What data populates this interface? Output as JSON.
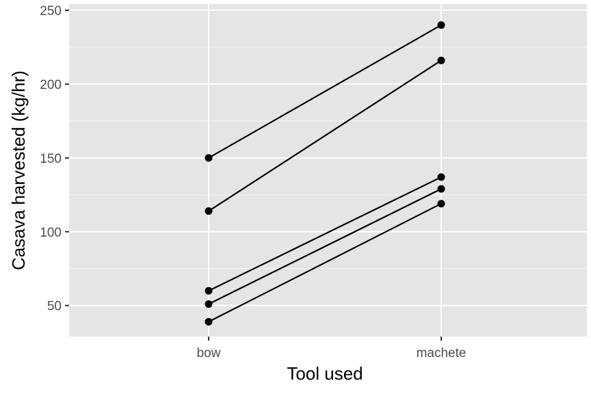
{
  "chart_data": {
    "type": "line",
    "title": "",
    "xlabel": "Tool used",
    "ylabel": "Casava harvested (kg/hr)",
    "categories": [
      "bow",
      "machete"
    ],
    "ylim": [
      29,
      250
    ],
    "yticks": [
      50,
      100,
      150,
      200,
      250
    ],
    "grid": true,
    "legend": "none",
    "series": [
      {
        "values": [
          150,
          240
        ]
      },
      {
        "values": [
          114,
          216
        ]
      },
      {
        "values": [
          60,
          137
        ]
      },
      {
        "values": [
          51,
          129
        ]
      },
      {
        "values": [
          39,
          119
        ]
      }
    ],
    "colors": {
      "panel": "#e5e5e5",
      "grid_major": "#ffffff",
      "line": "#000000",
      "tick_text": "#4d4d4d",
      "tick_mark": "#333333"
    }
  }
}
